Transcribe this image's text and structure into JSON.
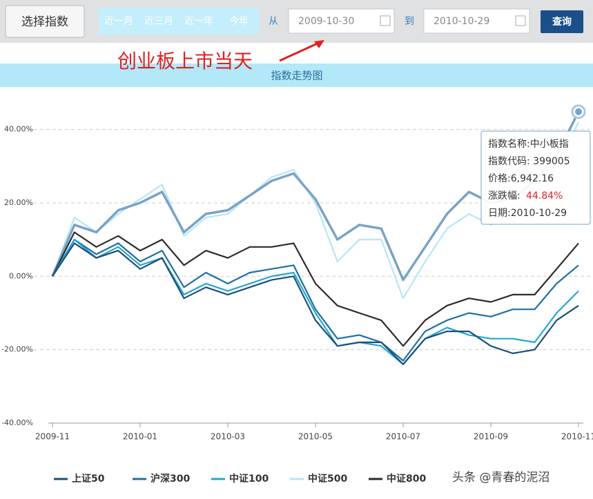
{
  "toolbar": {
    "select_button": "选择指数",
    "ranges": [
      "近一月",
      "近三月",
      "近一年",
      "今年"
    ],
    "from_label": "从",
    "from_date": "2009-10-30",
    "to_label": "到",
    "to_date": "2010-10-29",
    "query_button": "查询"
  },
  "annotation": "创业板上市当天",
  "watermark": "头条 @青春的泥沼",
  "tooltip": {
    "name": "指数名称:中小板指",
    "code": "指数代码: 399005",
    "price": "价格:6,942.16",
    "change_label": "涨跌幅:",
    "change": "44.84%",
    "date": "日期:2010-10-29"
  },
  "chart_data": {
    "type": "line",
    "title": "指数走势图",
    "categories": [
      "2009-11",
      null,
      null,
      null,
      "2010-01",
      null,
      null,
      null,
      "2010-03",
      null,
      null,
      null,
      "2010-05",
      null,
      null,
      null,
      "2010-07",
      null,
      null,
      null,
      "2010-09",
      null,
      null,
      null,
      "2010-11"
    ],
    "ylim": [
      -40,
      45
    ],
    "yticks": [
      {
        "value": -40,
        "label": "-40.00%"
      },
      {
        "value": -20,
        "label": "-20.00%"
      },
      {
        "value": 0,
        "label": "0.00%"
      },
      {
        "value": 20,
        "label": "20.00%"
      },
      {
        "value": 40,
        "label": "40.00%"
      }
    ],
    "grid": true,
    "series": [
      {
        "name": "上证50",
        "color": "#1b4f7a",
        "values": [
          0,
          9,
          5,
          7,
          2,
          5,
          -6,
          -3,
          -5,
          -3,
          -1,
          0,
          -12,
          -19,
          -18,
          -18,
          -24,
          -17,
          -15,
          -15,
          -19,
          -21,
          -20,
          -12,
          -8
        ]
      },
      {
        "name": "沪深300",
        "color": "#1e6fa3",
        "values": [
          0,
          10,
          6,
          9,
          4,
          7,
          -3,
          1,
          -2,
          1,
          2,
          3,
          -9,
          -17,
          -16,
          -18,
          -23,
          -15,
          -12,
          -10,
          -11,
          -9,
          -9,
          -2,
          3
        ]
      },
      {
        "name": "中证100",
        "color": "#22a7d0",
        "values": [
          0,
          10,
          5,
          8,
          3,
          5,
          -5,
          -2,
          -4,
          -2,
          0,
          1,
          -10,
          -19,
          -18,
          -19,
          -24,
          -17,
          -14,
          -16,
          -17,
          -17,
          -18,
          -10,
          -4
        ]
      },
      {
        "name": "中证500",
        "color": "#b5e6f7",
        "values": [
          0,
          16,
          12,
          17,
          21,
          25,
          11,
          16,
          17,
          22,
          27,
          29,
          20,
          4,
          10,
          10,
          -6,
          4,
          13,
          17,
          14,
          17,
          22,
          30,
          42
        ]
      },
      {
        "name": "中证800",
        "color": "#2b2b2b",
        "values": [
          0,
          12,
          8,
          11,
          7,
          10,
          3,
          7,
          5,
          8,
          8,
          9,
          -2,
          -8,
          -10,
          -12,
          -19,
          -12,
          -8,
          -6,
          -7,
          -5,
          -5,
          2,
          9
        ]
      },
      {
        "color": "#7aa2c6",
        "values": [
          0,
          14,
          12,
          18,
          20,
          23,
          12,
          17,
          18,
          22,
          26,
          28,
          21,
          10,
          14,
          13,
          -1,
          8,
          17,
          23,
          20,
          21,
          26,
          33,
          44.84
        ]
      }
    ]
  }
}
